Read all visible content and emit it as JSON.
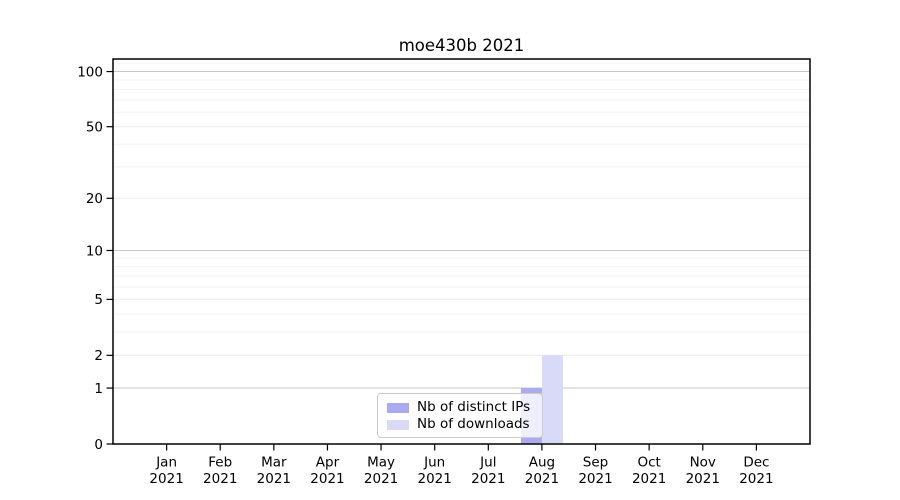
{
  "chart_data": {
    "type": "bar",
    "title": "moe430b 2021",
    "categories": [
      "Jan 2021",
      "Feb 2021",
      "Mar 2021",
      "Apr 2021",
      "May 2021",
      "Jun 2021",
      "Jul 2021",
      "Aug 2021",
      "Sep 2021",
      "Oct 2021",
      "Nov 2021",
      "Dec 2021"
    ],
    "series": [
      {
        "name": "Nb of distinct IPs",
        "color": "#aaaaf0",
        "values": [
          0,
          0,
          0,
          0,
          0,
          0,
          0,
          1,
          0,
          0,
          0,
          0
        ]
      },
      {
        "name": "Nb of downloads",
        "color": "#d9d9f8",
        "values": [
          0,
          0,
          0,
          0,
          0,
          0,
          0,
          2,
          0,
          0,
          0,
          0
        ]
      }
    ],
    "xlabel": "",
    "ylabel": "",
    "yscale": "log1p",
    "ylim": [
      0,
      116
    ],
    "yticks": [
      0,
      1,
      2,
      5,
      10,
      20,
      50,
      100
    ],
    "minor_yticks": [
      3,
      4,
      6,
      7,
      8,
      9,
      30,
      40,
      60,
      70,
      80,
      90,
      110
    ],
    "strong_gridlines": [
      1,
      10,
      100
    ],
    "grid": "horizontal",
    "legend_position": "lower center (inside axes)"
  },
  "colors": {
    "axis": "#000000",
    "grid_minor": "#f2f2f2",
    "grid_major": "#ececec",
    "grid_strong": "#c9c9c9",
    "tick_text": "#000000"
  }
}
